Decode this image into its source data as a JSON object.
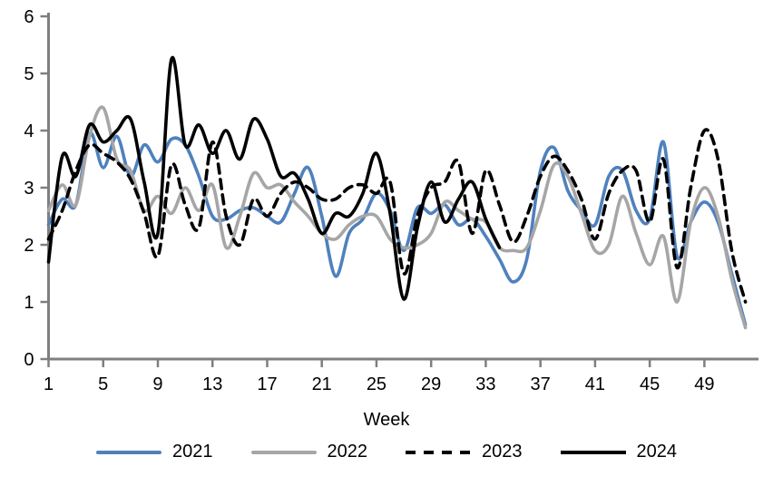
{
  "chart_data": {
    "type": "line",
    "title": "",
    "xlabel": "Week",
    "ylabel": "",
    "xlim": [
      1,
      53
    ],
    "ylim": [
      0,
      6
    ],
    "x_ticks": [
      1,
      5,
      9,
      13,
      17,
      21,
      25,
      29,
      33,
      37,
      41,
      45,
      49
    ],
    "y_ticks": [
      0,
      1,
      2,
      3,
      4,
      5,
      6
    ],
    "grid": false,
    "legend_position": "bottom",
    "axis_color": "#7f7f7f",
    "label_color": "#000000",
    "smoothed_lines": true,
    "x_unit": "week_number",
    "series": [
      {
        "name": "2021",
        "color": "#4f81bd",
        "style": "solid",
        "start_week": 1,
        "values": [
          2.35,
          2.8,
          2.7,
          3.95,
          3.35,
          3.9,
          3.2,
          3.75,
          3.45,
          3.85,
          3.75,
          3.2,
          2.5,
          2.45,
          2.6,
          2.65,
          2.5,
          2.4,
          2.9,
          3.35,
          2.5,
          1.45,
          2.2,
          2.45,
          2.9,
          2.6,
          1.9,
          2.65,
          2.55,
          2.7,
          2.35,
          2.45,
          2.15,
          1.75,
          1.35,
          1.75,
          3.3,
          3.7,
          2.95,
          2.6,
          2.35,
          3.2,
          3.3,
          2.6,
          2.45,
          3.8,
          1.8,
          2.4,
          2.75,
          2.4,
          1.5,
          0.6
        ]
      },
      {
        "name": "2022",
        "color": "#a6a6a6",
        "style": "solid",
        "start_week": 1,
        "values": [
          2.6,
          3.05,
          2.7,
          3.9,
          4.4,
          3.5,
          3.3,
          2.6,
          2.85,
          2.55,
          3.0,
          2.6,
          3.05,
          1.95,
          2.5,
          3.25,
          3.0,
          3.05,
          2.75,
          2.5,
          2.2,
          2.1,
          2.35,
          2.5,
          2.5,
          2.1,
          1.95,
          2.0,
          2.2,
          2.75,
          2.6,
          2.45,
          2.4,
          1.95,
          1.9,
          1.95,
          2.6,
          3.4,
          3.2,
          2.55,
          1.9,
          2.0,
          2.85,
          2.2,
          1.65,
          2.15,
          1.0,
          2.4,
          3.0,
          2.5,
          1.4,
          0.55
        ]
      },
      {
        "name": "2023",
        "color": "#000000",
        "style": "dashed",
        "start_week": 1,
        "values": [
          2.1,
          2.6,
          3.3,
          3.75,
          3.6,
          3.45,
          3.15,
          2.55,
          1.8,
          3.4,
          2.7,
          2.3,
          3.8,
          2.5,
          2.0,
          2.8,
          2.5,
          2.9,
          3.1,
          3.0,
          2.8,
          2.8,
          3.0,
          3.05,
          2.9,
          3.1,
          1.5,
          2.5,
          3.0,
          3.1,
          3.45,
          2.2,
          3.3,
          2.7,
          2.05,
          2.5,
          3.2,
          3.55,
          3.3,
          2.8,
          2.1,
          2.9,
          3.3,
          3.3,
          2.4,
          3.5,
          1.6,
          3.0,
          4.0,
          3.5,
          1.9,
          1.0
        ]
      },
      {
        "name": "2024",
        "color": "#000000",
        "style": "solid",
        "start_week": 1,
        "values": [
          1.7,
          3.55,
          3.2,
          4.1,
          3.8,
          4.0,
          4.2,
          3.1,
          2.2,
          5.25,
          3.75,
          4.1,
          3.6,
          4.0,
          3.5,
          4.2,
          3.85,
          3.2,
          3.25,
          2.8,
          2.2,
          2.55,
          2.5,
          2.9,
          3.6,
          2.55,
          1.05,
          2.3,
          3.1,
          2.4,
          2.8,
          3.1,
          2.45,
          1.95
        ]
      }
    ]
  },
  "legend": {
    "items": [
      "2021",
      "2022",
      "2023",
      "2024"
    ]
  }
}
